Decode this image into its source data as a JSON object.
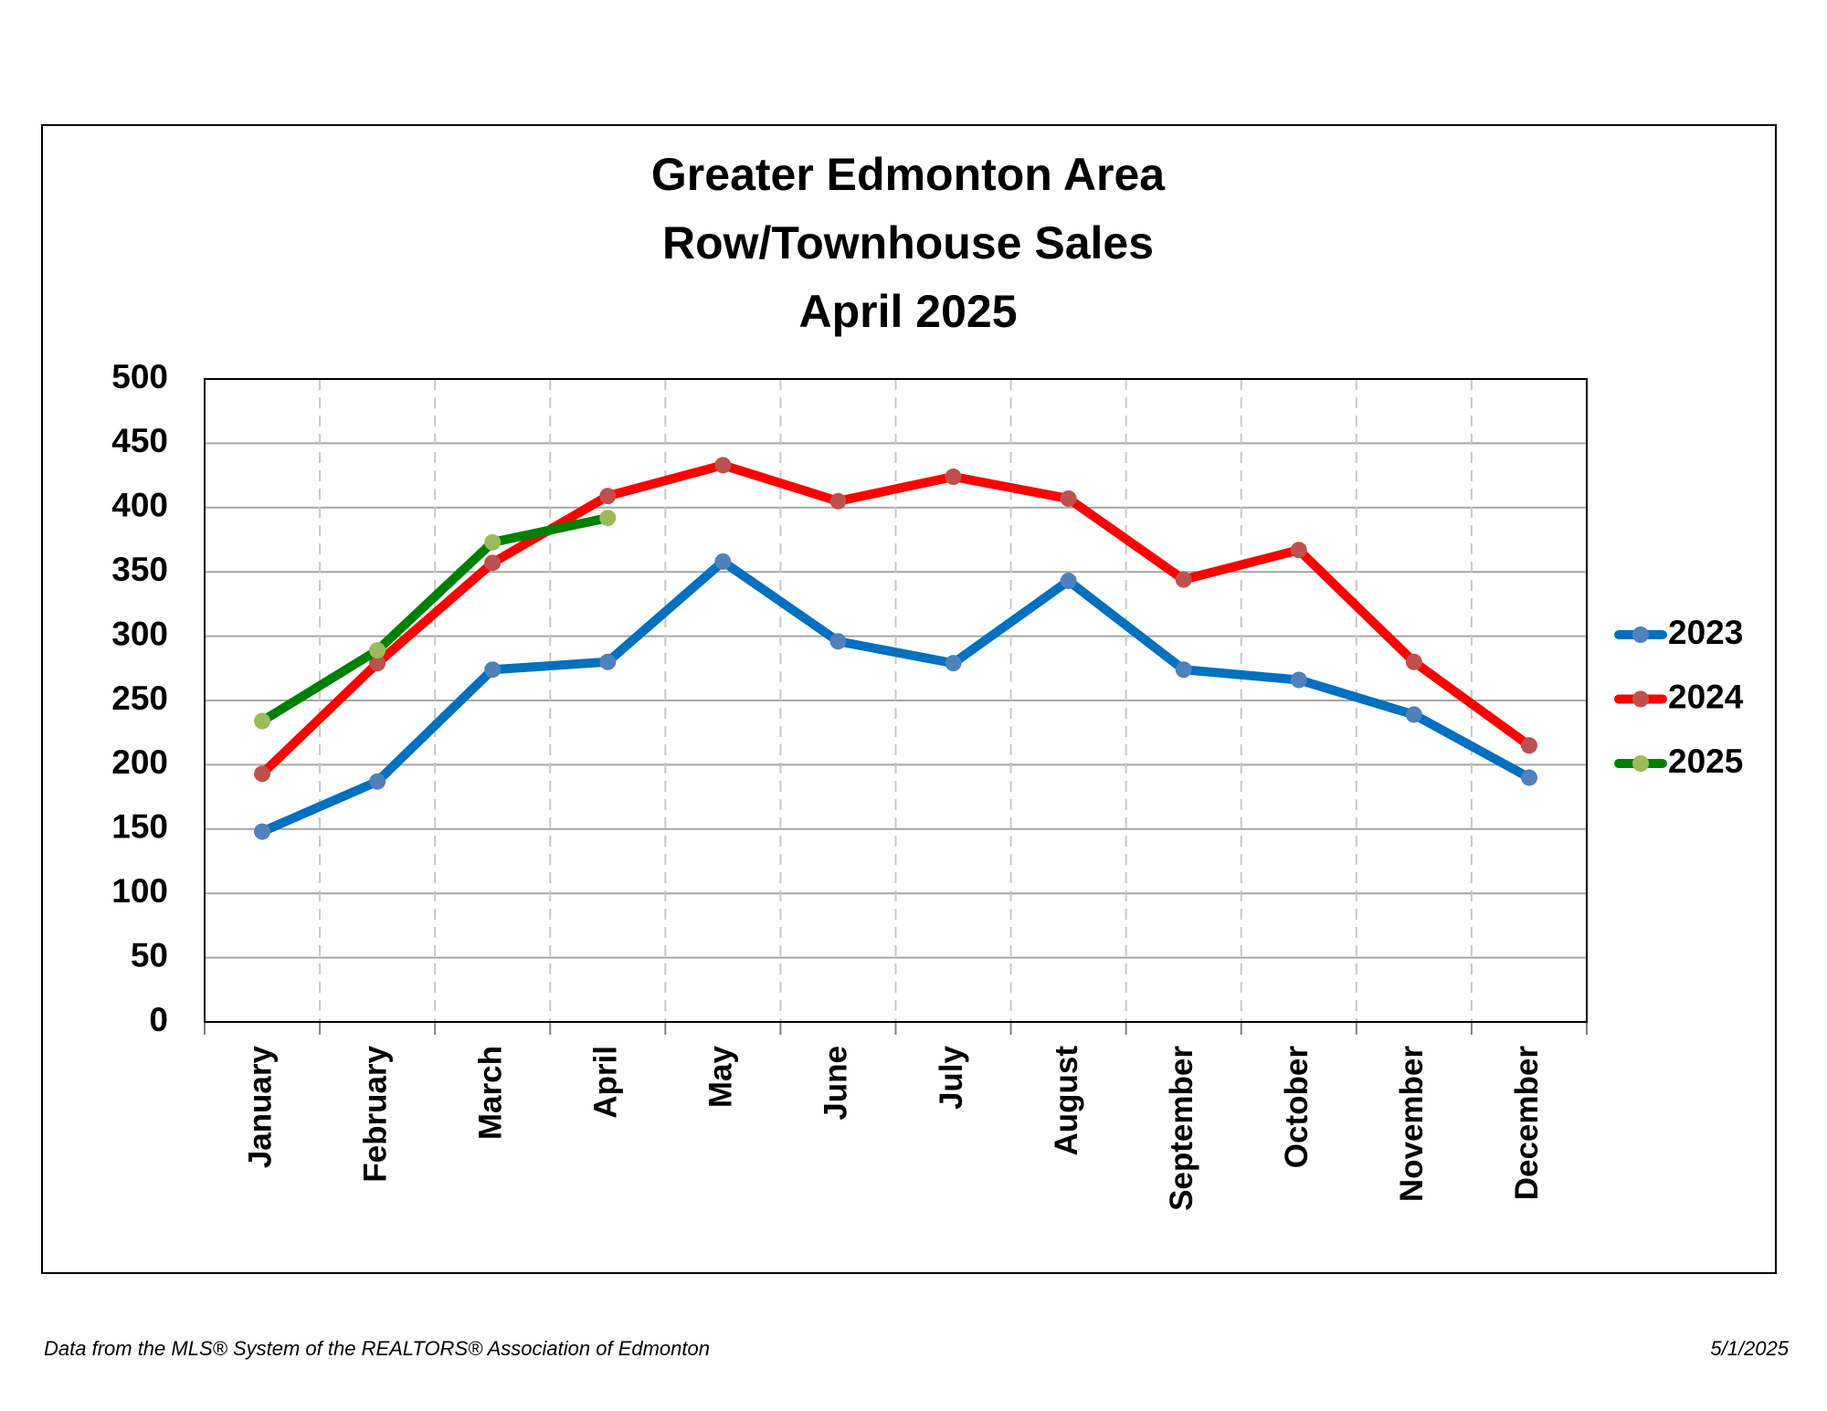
{
  "chart_data": {
    "type": "line",
    "title": [
      "Greater Edmonton Area",
      "Row/Townhouse Sales",
      "April 2025"
    ],
    "categories": [
      "January",
      "February",
      "March",
      "April",
      "May",
      "June",
      "July",
      "August",
      "September",
      "October",
      "November",
      "December"
    ],
    "series": [
      {
        "name": "2023",
        "color": "#0070c0",
        "marker_color": "#4f81bd",
        "values": [
          148,
          187,
          274,
          280,
          358,
          296,
          279,
          343,
          274,
          266,
          239,
          190
        ]
      },
      {
        "name": "2024",
        "color": "#ff0000",
        "marker_color": "#c0504d",
        "values": [
          193,
          279,
          357,
          409,
          433,
          405,
          424,
          407,
          344,
          367,
          280,
          215
        ]
      },
      {
        "name": "2025",
        "color": "#008000",
        "marker_color": "#9bbb59",
        "values": [
          234,
          289,
          373,
          392,
          null,
          null,
          null,
          null,
          null,
          null,
          null,
          null
        ]
      }
    ],
    "ylim": [
      0,
      500
    ],
    "yticks": [
      0,
      50,
      100,
      150,
      200,
      250,
      300,
      350,
      400,
      450,
      500
    ],
    "grid": true,
    "legend": "right"
  },
  "footer": {
    "source": "Data from the MLS® System of the REALTORS® Association of Edmonton",
    "date": "5/1/2025"
  }
}
